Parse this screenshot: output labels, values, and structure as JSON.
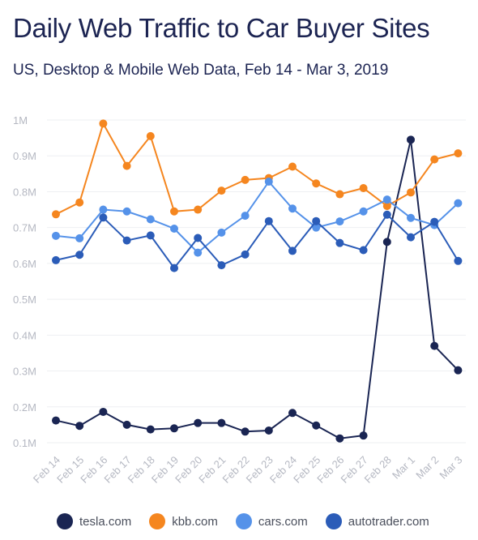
{
  "chart_data": {
    "type": "line",
    "title": "Daily Web Traffic to Car Buyer Sites",
    "subtitle": "US, Desktop & Mobile Web Data, Feb 14 - Mar 3, 2019",
    "xlabel": "",
    "ylabel": "",
    "categories": [
      "Feb 14",
      "Feb 15",
      "Feb 16",
      "Feb 17",
      "Feb 18",
      "Feb 19",
      "Feb 20",
      "Feb 21",
      "Feb 22",
      "Feb 23",
      "Feb 24",
      "Feb 25",
      "Feb 26",
      "Feb 27",
      "Feb 28",
      "Mar 1",
      "Mar 2",
      "Mar 3"
    ],
    "y_ticks": [
      {
        "value": 1000000,
        "label": "1M"
      },
      {
        "value": 900000,
        "label": "0.9M"
      },
      {
        "value": 800000,
        "label": "0.8M"
      },
      {
        "value": 700000,
        "label": "0.7M"
      },
      {
        "value": 600000,
        "label": "0.6M"
      },
      {
        "value": 500000,
        "label": "0.5M"
      },
      {
        "value": 400000,
        "label": "0.4M"
      },
      {
        "value": 300000,
        "label": "0.3M"
      },
      {
        "value": 200000,
        "label": "0.2M"
      },
      {
        "value": 100000,
        "label": "0.1M"
      }
    ],
    "ylim": [
      100000,
      1000000
    ],
    "grid": true,
    "legend_position": "bottom",
    "series": [
      {
        "name": "tesla.com",
        "color": "#1a2553",
        "values": [
          162000,
          147000,
          186000,
          150000,
          137000,
          140000,
          155000,
          155000,
          131000,
          134000,
          183000,
          148000,
          112000,
          120000,
          660000,
          945000,
          370000,
          302000
        ]
      },
      {
        "name": "kbb.com",
        "color": "#f5861f",
        "values": [
          737000,
          770000,
          990000,
          872000,
          955000,
          745000,
          750000,
          803000,
          833000,
          838000,
          870000,
          823000,
          793000,
          810000,
          760000,
          798000,
          890000,
          907000
        ]
      },
      {
        "name": "cars.com",
        "color": "#5592e9",
        "values": [
          677000,
          670000,
          750000,
          745000,
          723000,
          697000,
          630000,
          686000,
          733000,
          828000,
          753000,
          700000,
          717000,
          745000,
          778000,
          727000,
          707000,
          768000
        ]
      },
      {
        "name": "autotrader.com",
        "color": "#2b5cb8",
        "values": [
          609000,
          624000,
          728000,
          664000,
          678000,
          587000,
          671000,
          595000,
          625000,
          718000,
          635000,
          718000,
          657000,
          637000,
          736000,
          673000,
          716000,
          607000
        ]
      }
    ]
  }
}
